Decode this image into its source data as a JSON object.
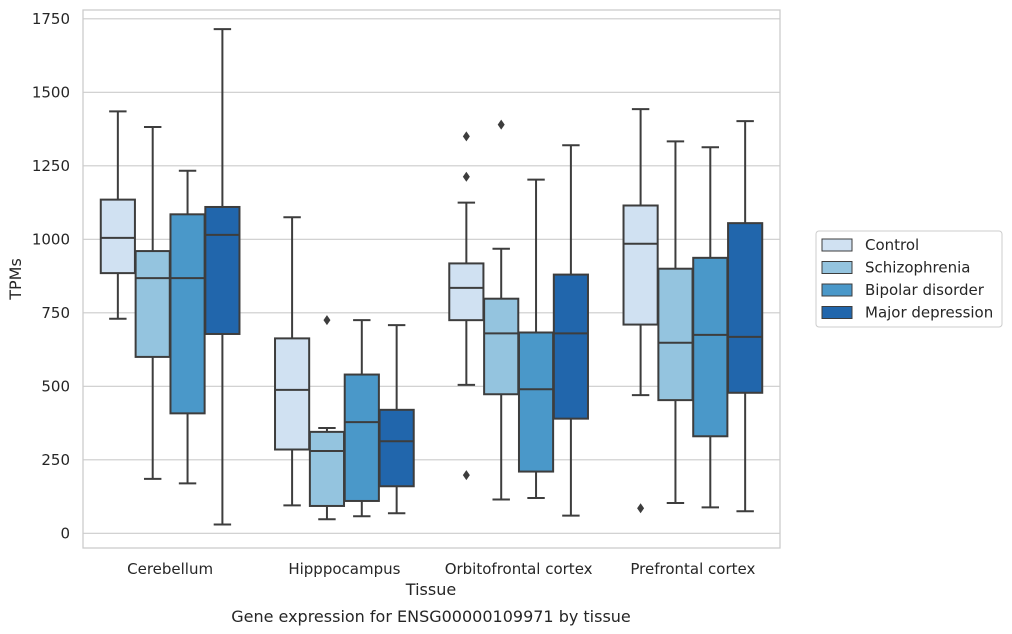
{
  "chart_data": {
    "type": "box",
    "title": "",
    "caption": "Gene expression for ENSG00000109971 by tissue",
    "xlabel": "Tissue",
    "ylabel": "TPMs",
    "ylim": [
      -50,
      1780
    ],
    "yticks": [
      0,
      250,
      500,
      750,
      1000,
      1250,
      1500,
      1750
    ],
    "grid": "horizontal",
    "legend_position": "right",
    "categories": [
      "Cerebellum",
      "Hipppocampus",
      "Orbitofrontal cortex",
      "Prefrontal cortex"
    ],
    "series": [
      {
        "name": "Control",
        "color": "#d0e1f2",
        "boxes": [
          {
            "q1": 885,
            "median": 1005,
            "q3": 1135,
            "whisker_low": 730,
            "whisker_high": 1435,
            "outliers": []
          },
          {
            "q1": 285,
            "median": 488,
            "q3": 663,
            "whisker_low": 95,
            "whisker_high": 1075,
            "outliers": []
          },
          {
            "q1": 725,
            "median": 835,
            "q3": 918,
            "whisker_low": 505,
            "whisker_high": 1125,
            "outliers": [
              1350,
              1213,
              198
            ]
          },
          {
            "q1": 710,
            "median": 985,
            "q3": 1115,
            "whisker_low": 470,
            "whisker_high": 1443,
            "outliers": [
              85
            ]
          }
        ]
      },
      {
        "name": "Schizophrenia",
        "color": "#94c4df",
        "boxes": [
          {
            "q1": 600,
            "median": 868,
            "q3": 960,
            "whisker_low": 185,
            "whisker_high": 1382,
            "outliers": []
          },
          {
            "q1": 93,
            "median": 280,
            "q3": 345,
            "whisker_low": 48,
            "whisker_high": 358,
            "outliers": [
              725
            ]
          },
          {
            "q1": 473,
            "median": 680,
            "q3": 798,
            "whisker_low": 115,
            "whisker_high": 968,
            "outliers": [
              1390
            ]
          },
          {
            "q1": 453,
            "median": 648,
            "q3": 900,
            "whisker_low": 103,
            "whisker_high": 1333,
            "outliers": []
          }
        ]
      },
      {
        "name": "Bipolar disorder",
        "color": "#4a98c9",
        "boxes": [
          {
            "q1": 408,
            "median": 868,
            "q3": 1085,
            "whisker_low": 170,
            "whisker_high": 1233,
            "outliers": []
          },
          {
            "q1": 110,
            "median": 378,
            "q3": 540,
            "whisker_low": 58,
            "whisker_high": 725,
            "outliers": []
          },
          {
            "q1": 210,
            "median": 490,
            "q3": 683,
            "whisker_low": 120,
            "whisker_high": 1203,
            "outliers": []
          },
          {
            "q1": 330,
            "median": 675,
            "q3": 937,
            "whisker_low": 88,
            "whisker_high": 1313,
            "outliers": []
          }
        ]
      },
      {
        "name": "Major depression",
        "color": "#2166ac",
        "boxes": [
          {
            "q1": 678,
            "median": 1015,
            "q3": 1110,
            "whisker_low": 30,
            "whisker_high": 1715,
            "outliers": []
          },
          {
            "q1": 160,
            "median": 313,
            "q3": 420,
            "whisker_low": 68,
            "whisker_high": 708,
            "outliers": []
          },
          {
            "q1": 390,
            "median": 680,
            "q3": 880,
            "whisker_low": 60,
            "whisker_high": 1320,
            "outliers": []
          },
          {
            "q1": 478,
            "median": 668,
            "q3": 1055,
            "whisker_low": 75,
            "whisker_high": 1402,
            "outliers": []
          }
        ]
      }
    ]
  }
}
